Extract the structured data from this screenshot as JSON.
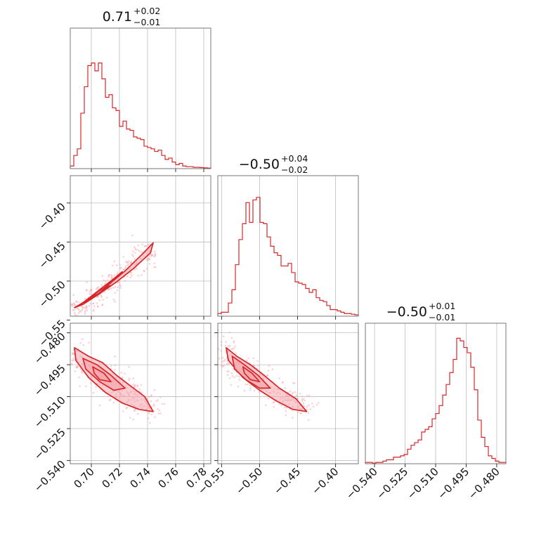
{
  "figure": {
    "type": "corner-plot",
    "accent_color": "#d62728",
    "fill_color": "#f4a6ad"
  },
  "chart_data": [
    {
      "panel": "hist-1",
      "type": "bar",
      "title": {
        "value": "0.71",
        "plus": "+0.02",
        "minus": "−0.01"
      },
      "xlim": [
        0.685,
        0.785
      ],
      "x_ticks": [
        "0.70",
        "0.72",
        "0.74",
        "0.76",
        "0.78"
      ],
      "x_tick_values": [
        0.7,
        0.72,
        0.74,
        0.76,
        0.78
      ],
      "bin_start": 0.685,
      "bin_width": 0.0025,
      "counts": [
        0.02,
        0.1,
        0.15,
        0.42,
        0.62,
        0.78,
        0.8,
        0.74,
        0.8,
        0.68,
        0.54,
        0.56,
        0.46,
        0.44,
        0.32,
        0.36,
        0.3,
        0.29,
        0.24,
        0.23,
        0.22,
        0.17,
        0.16,
        0.15,
        0.13,
        0.14,
        0.1,
        0.07,
        0.08,
        0.05,
        0.03,
        0.04,
        0.02,
        0.015,
        0.015,
        0.01,
        0.01,
        0.008,
        0.006,
        0.004
      ]
    },
    {
      "panel": "hist-2",
      "type": "bar",
      "title": {
        "value": "−0.50",
        "plus": "+0.04",
        "minus": "−0.02"
      },
      "xlim": [
        -0.555,
        -0.37
      ],
      "x_ticks": [
        "−0.55",
        "−0.50",
        "−0.45",
        "−0.40"
      ],
      "x_tick_values": [
        -0.55,
        -0.5,
        -0.45,
        -0.4
      ],
      "bin_start": -0.555,
      "bin_width": 0.004625,
      "counts": [
        0.02,
        0.03,
        0.03,
        0.1,
        0.2,
        0.39,
        0.58,
        0.7,
        0.86,
        0.71,
        0.88,
        0.9,
        0.71,
        0.7,
        0.6,
        0.53,
        0.48,
        0.46,
        0.38,
        0.38,
        0.4,
        0.33,
        0.26,
        0.25,
        0.24,
        0.21,
        0.18,
        0.2,
        0.14,
        0.12,
        0.11,
        0.08,
        0.05,
        0.05,
        0.04,
        0.03,
        0.02,
        0.02,
        0.015,
        0.01
      ]
    },
    {
      "panel": "hist-3",
      "type": "bar",
      "title": {
        "value": "−0.50",
        "plus": "+0.01",
        "minus": "−0.01"
      },
      "xlim": [
        -0.5445,
        -0.4755
      ],
      "x_ticks": [
        "−0.540",
        "−0.525",
        "−0.510",
        "−0.495",
        "−0.480"
      ],
      "x_tick_values": [
        -0.54,
        -0.525,
        -0.51,
        -0.495,
        -0.48
      ],
      "bin_start": -0.5445,
      "bin_width": 0.001725,
      "counts": [
        0.01,
        0.01,
        0.005,
        0.01,
        0.01,
        0.02,
        0.03,
        0.03,
        0.05,
        0.05,
        0.06,
        0.07,
        0.11,
        0.14,
        0.16,
        0.18,
        0.24,
        0.26,
        0.28,
        0.34,
        0.38,
        0.44,
        0.52,
        0.6,
        0.69,
        0.79,
        0.95,
        0.93,
        0.88,
        0.84,
        0.73,
        0.56,
        0.33,
        0.2,
        0.13,
        0.06,
        0.04,
        0.02,
        0.01,
        0.01
      ]
    },
    {
      "panel": "scatter-2-1",
      "type": "scatter",
      "xlim": [
        0.685,
        0.785
      ],
      "ylim": [
        -0.545,
        -0.365
      ],
      "x_ticks": [
        "0.70",
        "0.72",
        "0.74",
        "0.76",
        "0.78"
      ],
      "x_tick_values": [
        0.7,
        0.72,
        0.74,
        0.76,
        0.78
      ],
      "y_ticks": [
        "−0.55",
        "−0.50",
        "−0.45",
        "−0.40"
      ],
      "y_tick_values": [
        -0.55,
        -0.5,
        -0.45,
        -0.4
      ],
      "contours": [
        [
          [
            0.688,
            -0.534
          ],
          [
            0.7,
            -0.522
          ],
          [
            0.712,
            -0.505
          ],
          [
            0.724,
            -0.487
          ],
          [
            0.736,
            -0.466
          ],
          [
            0.744,
            -0.451
          ],
          [
            0.742,
            -0.464
          ],
          [
            0.73,
            -0.484
          ],
          [
            0.718,
            -0.501
          ],
          [
            0.706,
            -0.516
          ],
          [
            0.694,
            -0.53
          ]
        ],
        [
          [
            0.692,
            -0.53
          ],
          [
            0.703,
            -0.518
          ],
          [
            0.713,
            -0.503
          ],
          [
            0.722,
            -0.488
          ],
          [
            0.716,
            -0.497
          ],
          [
            0.706,
            -0.511
          ],
          [
            0.696,
            -0.525
          ]
        ],
        [
          [
            0.695,
            -0.527
          ],
          [
            0.705,
            -0.516
          ],
          [
            0.713,
            -0.506
          ],
          [
            0.705,
            -0.513
          ],
          [
            0.698,
            -0.524
          ]
        ]
      ]
    },
    {
      "panel": "scatter-3-1",
      "type": "scatter",
      "xlim": [
        0.685,
        0.785
      ],
      "ylim": [
        -0.5415,
        -0.4755
      ],
      "x_ticks": [
        "0.70",
        "0.72",
        "0.74",
        "0.76",
        "0.78"
      ],
      "x_tick_values": [
        0.7,
        0.72,
        0.74,
        0.76,
        0.78
      ],
      "y_ticks": [
        "−0.540",
        "−0.525",
        "−0.510",
        "−0.495",
        "−0.480"
      ],
      "y_tick_values": [
        -0.54,
        -0.525,
        -0.51,
        -0.495,
        -0.48
      ],
      "contours": [
        [
          [
            0.688,
            -0.487
          ],
          [
            0.698,
            -0.491
          ],
          [
            0.708,
            -0.494
          ],
          [
            0.718,
            -0.5
          ],
          [
            0.728,
            -0.505
          ],
          [
            0.738,
            -0.51
          ],
          [
            0.744,
            -0.517
          ],
          [
            0.734,
            -0.516
          ],
          [
            0.722,
            -0.513
          ],
          [
            0.71,
            -0.508
          ],
          [
            0.698,
            -0.501
          ],
          [
            0.689,
            -0.493
          ]
        ],
        [
          [
            0.694,
            -0.492
          ],
          [
            0.704,
            -0.495
          ],
          [
            0.714,
            -0.5
          ],
          [
            0.724,
            -0.506
          ],
          [
            0.716,
            -0.507
          ],
          [
            0.706,
            -0.503
          ],
          [
            0.696,
            -0.497
          ]
        ],
        [
          [
            0.701,
            -0.496
          ],
          [
            0.709,
            -0.499
          ],
          [
            0.714,
            -0.503
          ],
          [
            0.706,
            -0.502
          ],
          [
            0.702,
            -0.499
          ]
        ]
      ]
    },
    {
      "panel": "scatter-3-2",
      "type": "scatter",
      "xlim": [
        -0.555,
        -0.37
      ],
      "ylim": [
        -0.5415,
        -0.4755
      ],
      "x_ticks": [
        "−0.55",
        "−0.50",
        "−0.45",
        "−0.40"
      ],
      "x_tick_values": [
        -0.55,
        -0.5,
        -0.45,
        -0.4
      ],
      "y_ticks": [
        "−0.540",
        "−0.525",
        "−0.510",
        "−0.495",
        "−0.480"
      ],
      "y_tick_values": [
        -0.54,
        -0.525,
        -0.51,
        -0.495,
        -0.48
      ],
      "contours": [
        [
          [
            -0.544,
            -0.487
          ],
          [
            -0.53,
            -0.491
          ],
          [
            -0.512,
            -0.495
          ],
          [
            -0.494,
            -0.5
          ],
          [
            -0.474,
            -0.506
          ],
          [
            -0.452,
            -0.511
          ],
          [
            -0.438,
            -0.517
          ],
          [
            -0.456,
            -0.516
          ],
          [
            -0.478,
            -0.512
          ],
          [
            -0.5,
            -0.507
          ],
          [
            -0.522,
            -0.501
          ],
          [
            -0.541,
            -0.493
          ]
        ],
        [
          [
            -0.536,
            -0.491
          ],
          [
            -0.52,
            -0.495
          ],
          [
            -0.502,
            -0.5
          ],
          [
            -0.486,
            -0.506
          ],
          [
            -0.5,
            -0.506
          ],
          [
            -0.518,
            -0.502
          ],
          [
            -0.533,
            -0.497
          ]
        ],
        [
          [
            -0.522,
            -0.496
          ],
          [
            -0.51,
            -0.499
          ],
          [
            -0.5,
            -0.503
          ],
          [
            -0.512,
            -0.502
          ],
          [
            -0.52,
            -0.499
          ]
        ]
      ]
    }
  ]
}
